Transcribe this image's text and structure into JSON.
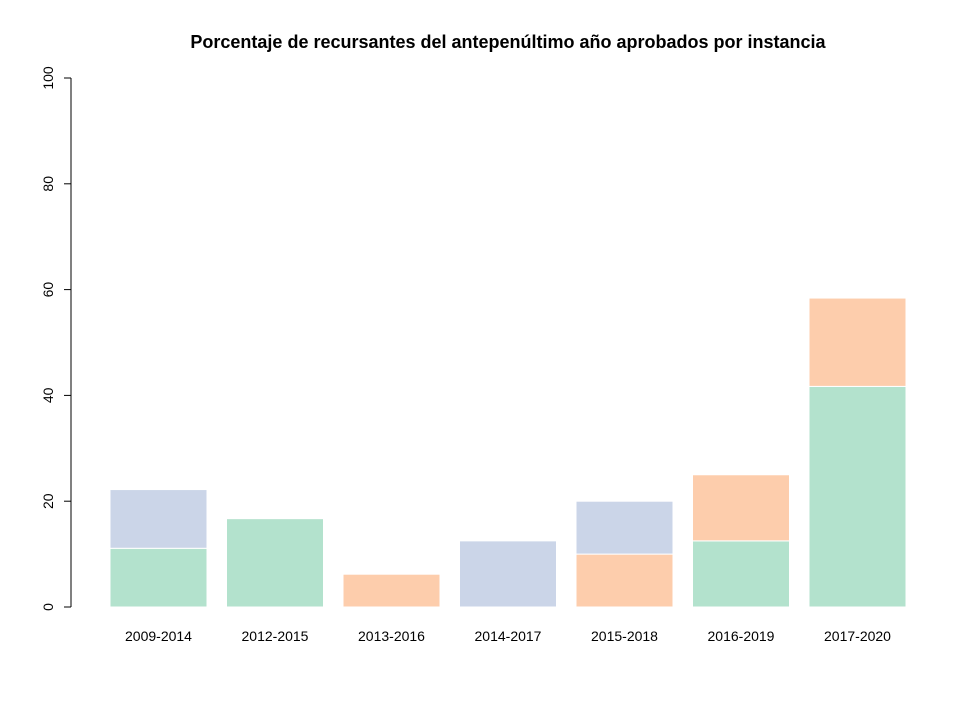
{
  "chart_data": {
    "type": "bar",
    "stacked": true,
    "title": "Porcentaje de recursantes del antepenúltimo año aprobados por instancia",
    "xlabel": "",
    "ylabel": "",
    "ylim": [
      0,
      100
    ],
    "yticks": [
      "0",
      "20",
      "40",
      "60",
      "80",
      "100"
    ],
    "grid": false,
    "legend": "none",
    "categories": [
      "2009-2014",
      "2012-2015",
      "2013-2016",
      "2014-2017",
      "2015-2018",
      "2016-2019",
      "2017-2020"
    ],
    "series": [
      {
        "color": "#b3e2cd",
        "values": [
          11.1,
          16.7,
          0,
          0,
          0,
          12.5,
          41.7
        ]
      },
      {
        "color": "#fdcdac",
        "values": [
          0,
          0,
          6.2,
          0,
          10.0,
          12.5,
          16.7
        ]
      },
      {
        "color": "#cbd5e8",
        "values": [
          11.1,
          0,
          0,
          12.5,
          10.0,
          0,
          0
        ]
      }
    ]
  }
}
